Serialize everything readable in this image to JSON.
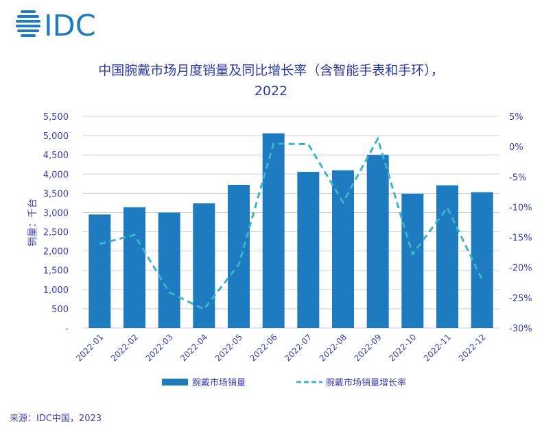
{
  "logo_text": "IDC",
  "colors": {
    "bar": "#1f7bbf",
    "line": "#3bb5c8",
    "text": "#3a3fb5",
    "grid": "#c9c9ef"
  },
  "chart_data": {
    "type": "bar",
    "title_line1": "中国腕戴市场月度销量及同比增长率（含智能手表和手环），",
    "title_line2": "2022",
    "ylabel": "销量：千台",
    "categories": [
      "2022-01",
      "2022-02",
      "2022-03",
      "2022-04",
      "2022-05",
      "2022-06",
      "2022-07",
      "2022-08",
      "2022-09",
      "2022-10",
      "2022-11",
      "2022-12"
    ],
    "series": [
      {
        "name": "腕戴市场销量",
        "type": "bar",
        "axis": "left",
        "values": [
          2950,
          3140,
          3000,
          3240,
          3720,
          5060,
          4060,
          4100,
          4500,
          3490,
          3710,
          3530
        ]
      },
      {
        "name": "腕戴市场销量增长率",
        "type": "line",
        "style": "dashed",
        "axis": "right",
        "values": [
          -16.1,
          -14.6,
          -24.1,
          -26.9,
          -19.5,
          0.5,
          0.4,
          -9.2,
          1.3,
          -17.8,
          -10.1,
          -22.0
        ]
      }
    ],
    "left_axis": {
      "ylim": [
        0,
        5500
      ],
      "ticks": [
        "-",
        "500",
        "1,000",
        "1,500",
        "2,000",
        "2,500",
        "3,000",
        "3,500",
        "4,000",
        "4,500",
        "5,000",
        "5,500"
      ]
    },
    "right_axis": {
      "ylim": [
        -30,
        5
      ],
      "ticks": [
        "-30%",
        "-25%",
        "-20%",
        "-15%",
        "-10%",
        "-5%",
        "0%",
        "5%"
      ]
    },
    "grid": true,
    "legend_position": "bottom"
  },
  "source": "来源：IDC中国，2023"
}
